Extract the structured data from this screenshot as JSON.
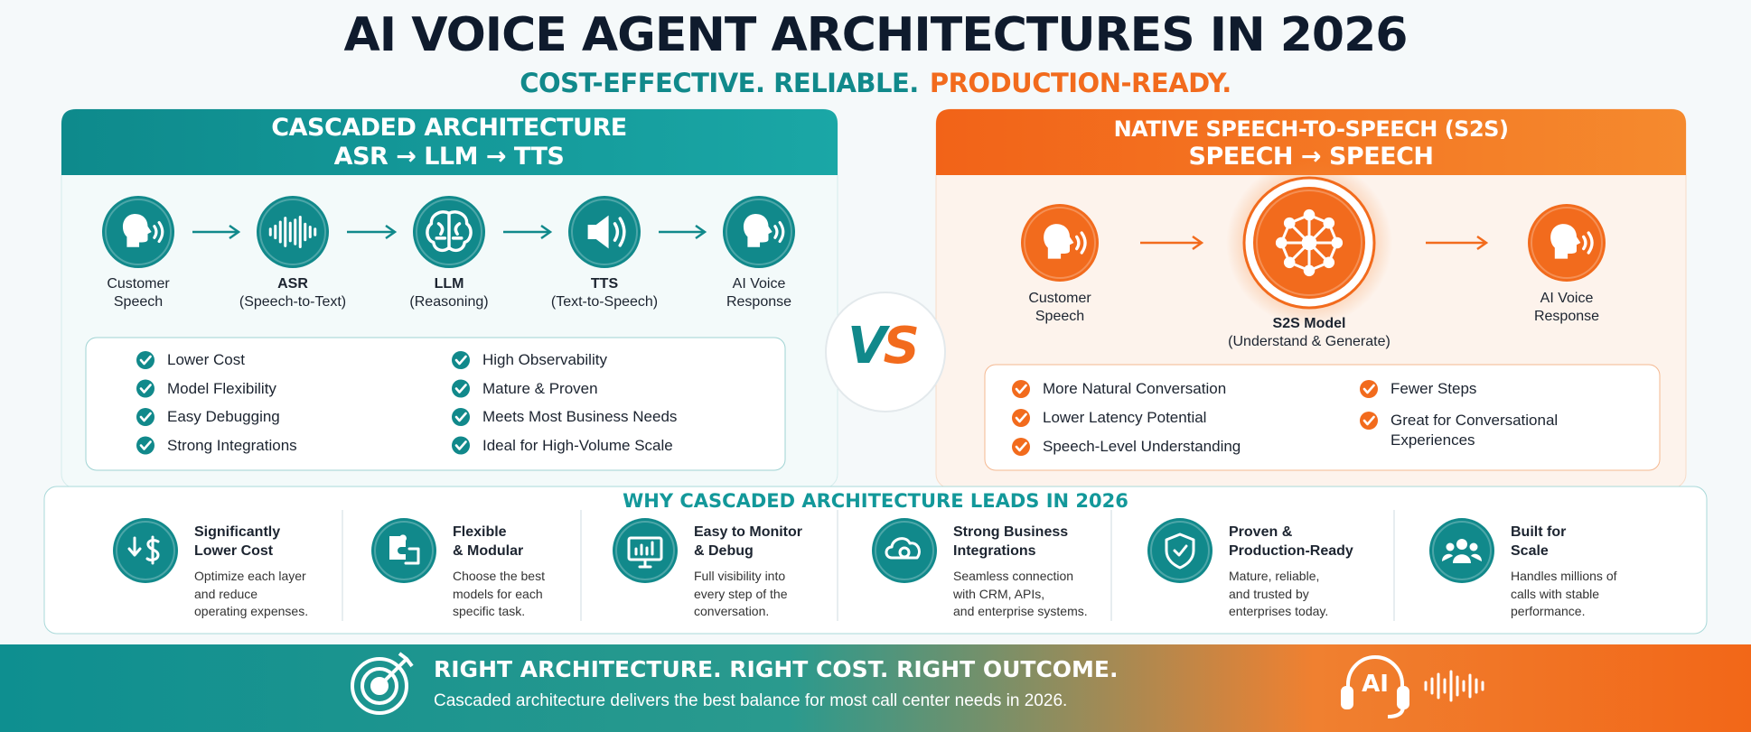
{
  "header": {
    "title": "AI VOICE AGENT ARCHITECTURES IN 2026",
    "subtitle": [
      "COST-EFFECTIVE. RELIABLE.",
      "PRODUCTION-READY."
    ]
  },
  "cascaded": {
    "title": "CASCADED ARCHITECTURE",
    "flow_label": "ASR → LLM → TTS",
    "steps": [
      {
        "lines": [
          "Customer",
          "Speech"
        ]
      },
      {
        "name": "ASR",
        "detail": "(Speech-to-Text)"
      },
      {
        "name": "LLM",
        "detail": "(Reasoning)"
      },
      {
        "name": "TTS",
        "detail": "(Text-to-Speech)"
      },
      {
        "lines": [
          "AI Voice",
          "Response"
        ]
      }
    ],
    "benefits": [
      [
        "Lower Cost",
        "Model Flexibility",
        "Easy Debugging",
        "Strong Integrations"
      ],
      [
        "High Observability",
        "Mature & Proven",
        "Meets Most Business Needs",
        "Ideal for High-Volume Scale"
      ]
    ]
  },
  "vs": [
    "V",
    "S"
  ],
  "native": {
    "title": "NATIVE SPEECH-TO-SPEECH (S2S)",
    "flow_label": "SPEECH → SPEECH",
    "steps": [
      {
        "lines": [
          "Customer",
          "Speech"
        ]
      },
      {
        "name": "S2S Model",
        "detail": "(Understand & Generate)"
      },
      {
        "lines": [
          "AI Voice",
          "Response"
        ]
      }
    ],
    "benefits": [
      [
        [
          "More Natural Conversation"
        ],
        [
          "Lower Latency Potential"
        ],
        [
          "Speech-Level Understanding"
        ]
      ],
      [
        [
          "Fewer Steps"
        ],
        [
          "Great for Conversational",
          "Experiences"
        ]
      ]
    ]
  },
  "why": {
    "title": "WHY CASCADED ARCHITECTURE LEADS IN 2026",
    "items": [
      {
        "title": [
          "Significantly",
          "Lower Cost"
        ],
        "description": [
          "Optimize each layer",
          "and reduce",
          "operating expenses."
        ]
      },
      {
        "title": [
          "Flexible",
          "& Modular"
        ],
        "description": [
          "Choose the best",
          "models for each",
          "specific task."
        ]
      },
      {
        "title": [
          "Easy to Monitor",
          "& Debug"
        ],
        "description": [
          "Full visibility into",
          "every step of the",
          "conversation."
        ]
      },
      {
        "title": [
          "Strong Business",
          "Integrations"
        ],
        "description": [
          "Seamless connection",
          "with CRM, APIs,",
          "and enterprise systems."
        ]
      },
      {
        "title": [
          "Proven &",
          "Production-Ready"
        ],
        "description": [
          "Mature, reliable,",
          "and trusted by",
          "enterprises today."
        ]
      },
      {
        "title": [
          "Built for",
          "Scale"
        ],
        "description": [
          "Handles millions of",
          "calls with stable",
          "performance."
        ]
      }
    ]
  },
  "footer": {
    "headline": "RIGHT ARCHITECTURE.  RIGHT COST. RIGHT OUTCOME.",
    "text": "Cascaded architecture delivers the best balance for most call center needs in 2026.",
    "badge": "AI"
  }
}
